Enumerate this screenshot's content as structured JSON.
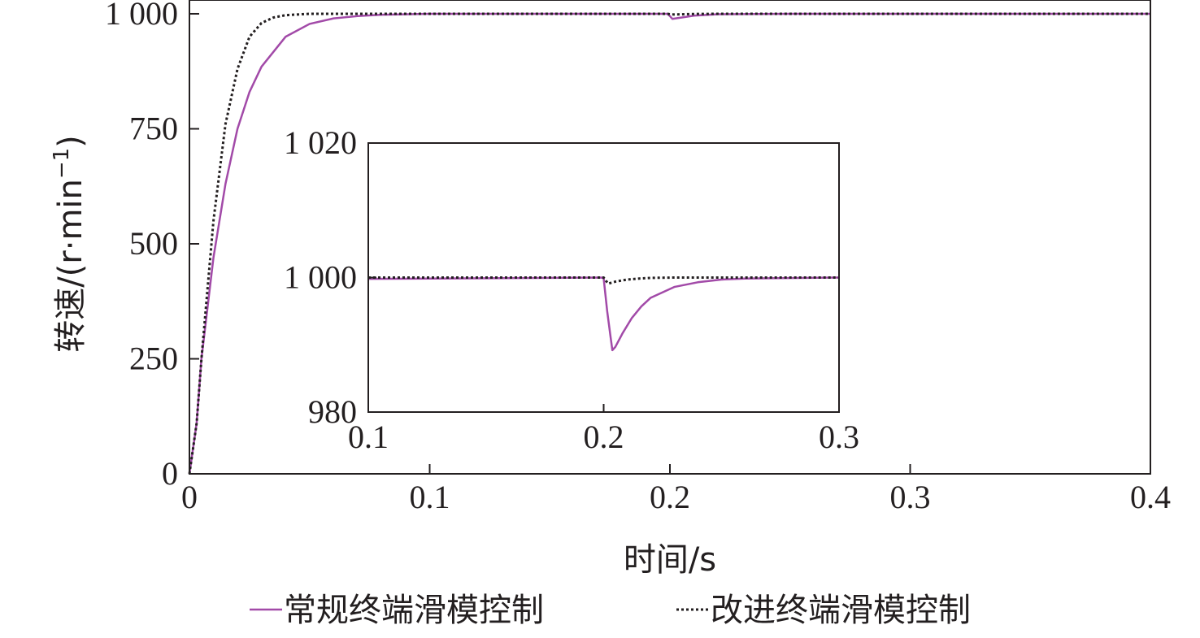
{
  "chart_data": [
    {
      "type": "line",
      "panel": "main",
      "xlabel": "时间/s",
      "ylabel": "转速/(r·min",
      "ylabel_superscript": "−1",
      "ylabel_close": ")",
      "xlim": [
        0,
        0.4
      ],
      "ylim": [
        0,
        1030
      ],
      "xticks": [
        0,
        0.1,
        0.2,
        0.3,
        0.4
      ],
      "xtick_labels": [
        "0",
        "0.1",
        "0.2",
        "0.3",
        "0.4"
      ],
      "yticks": [
        0,
        250,
        500,
        750,
        1000
      ],
      "ytick_labels": [
        "0",
        "250",
        "500",
        "750",
        "1 000"
      ],
      "grid": false,
      "series": [
        {
          "name": "常规终端滑模控制",
          "color": "#a24aa8",
          "style": "solid",
          "x": [
            0,
            0.003,
            0.005,
            0.01,
            0.015,
            0.02,
            0.025,
            0.03,
            0.04,
            0.05,
            0.06,
            0.07,
            0.08,
            0.1,
            0.15,
            0.199,
            0.2,
            0.201,
            0.205,
            0.21,
            0.22,
            0.25,
            0.3,
            0.4
          ],
          "y": [
            0,
            110,
            250,
            470,
            630,
            750,
            830,
            885,
            950,
            978,
            990,
            995,
            998,
            1000,
            1000,
            1000,
            995,
            989,
            992,
            996,
            999,
            1000,
            1000,
            1000
          ]
        },
        {
          "name": "改进终端滑模控制",
          "color": "#231f20",
          "style": "dotted",
          "x": [
            0,
            0.003,
            0.005,
            0.01,
            0.015,
            0.02,
            0.025,
            0.03,
            0.035,
            0.04,
            0.05,
            0.06,
            0.1,
            0.199,
            0.2,
            0.202,
            0.21,
            0.22,
            0.4
          ],
          "y": [
            0,
            110,
            250,
            550,
            760,
            880,
            950,
            980,
            992,
            997,
            1000,
            1000,
            1000,
            1000,
            999,
            998.5,
            999.6,
            1000,
            1000
          ]
        }
      ],
      "legend": "bottom"
    },
    {
      "type": "line",
      "panel": "inset",
      "xlim": [
        0.1,
        0.3
      ],
      "ylim": [
        980,
        1020
      ],
      "xticks": [
        0.1,
        0.2,
        0.3
      ],
      "xtick_labels": [
        "0.1",
        "0.2",
        "0.3"
      ],
      "yticks": [
        980,
        1000,
        1020
      ],
      "ytick_labels": [
        "980",
        "1 000",
        "1 020"
      ],
      "grid": false,
      "series": [
        {
          "name": "常规终端滑模控制",
          "color": "#a24aa8",
          "style": "solid",
          "x": [
            0.1,
            0.15,
            0.199,
            0.2,
            0.2015,
            0.203,
            0.2037,
            0.205,
            0.208,
            0.212,
            0.216,
            0.22,
            0.23,
            0.24,
            0.25,
            0.26,
            0.27,
            0.3
          ],
          "y": [
            999.8,
            999.9,
            1000,
            999.9,
            995,
            991,
            989.2,
            989.7,
            991.7,
            994,
            995.7,
            997,
            998.6,
            999.3,
            999.7,
            999.85,
            999.9,
            1000
          ]
        },
        {
          "name": "改进终端滑模控制",
          "color": "#231f20",
          "style": "dotted",
          "x": [
            0.1,
            0.2,
            0.201,
            0.202,
            0.205,
            0.21,
            0.215,
            0.22,
            0.23,
            0.3
          ],
          "y": [
            1000,
            1000,
            999.5,
            999.1,
            999.4,
            999.7,
            999.85,
            999.95,
            1000,
            1000
          ]
        }
      ]
    }
  ]
}
